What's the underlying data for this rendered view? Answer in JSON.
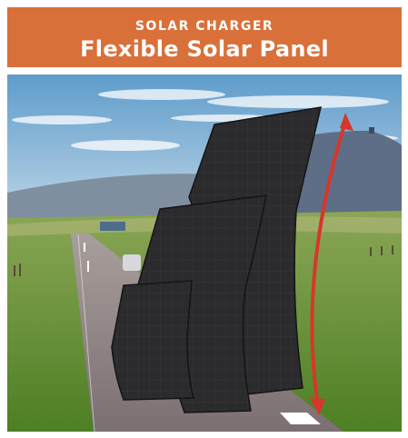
{
  "header": {
    "subtitle": "SOLAR CHARGER",
    "title": "Flexible Solar Panel",
    "background_color": "#d9703a",
    "text_color": "#ffffff"
  },
  "scene": {
    "sky_color_top": "#5f9ccb",
    "sky_color_bottom": "#c7dcea",
    "grass_color": "#6f9c3a",
    "road_color": "#8c7f80",
    "panel_color": "#2a2a2c",
    "arrow_color": "#d6372b",
    "panels": [
      "large-panel",
      "medium-panel",
      "small-panel"
    ]
  }
}
